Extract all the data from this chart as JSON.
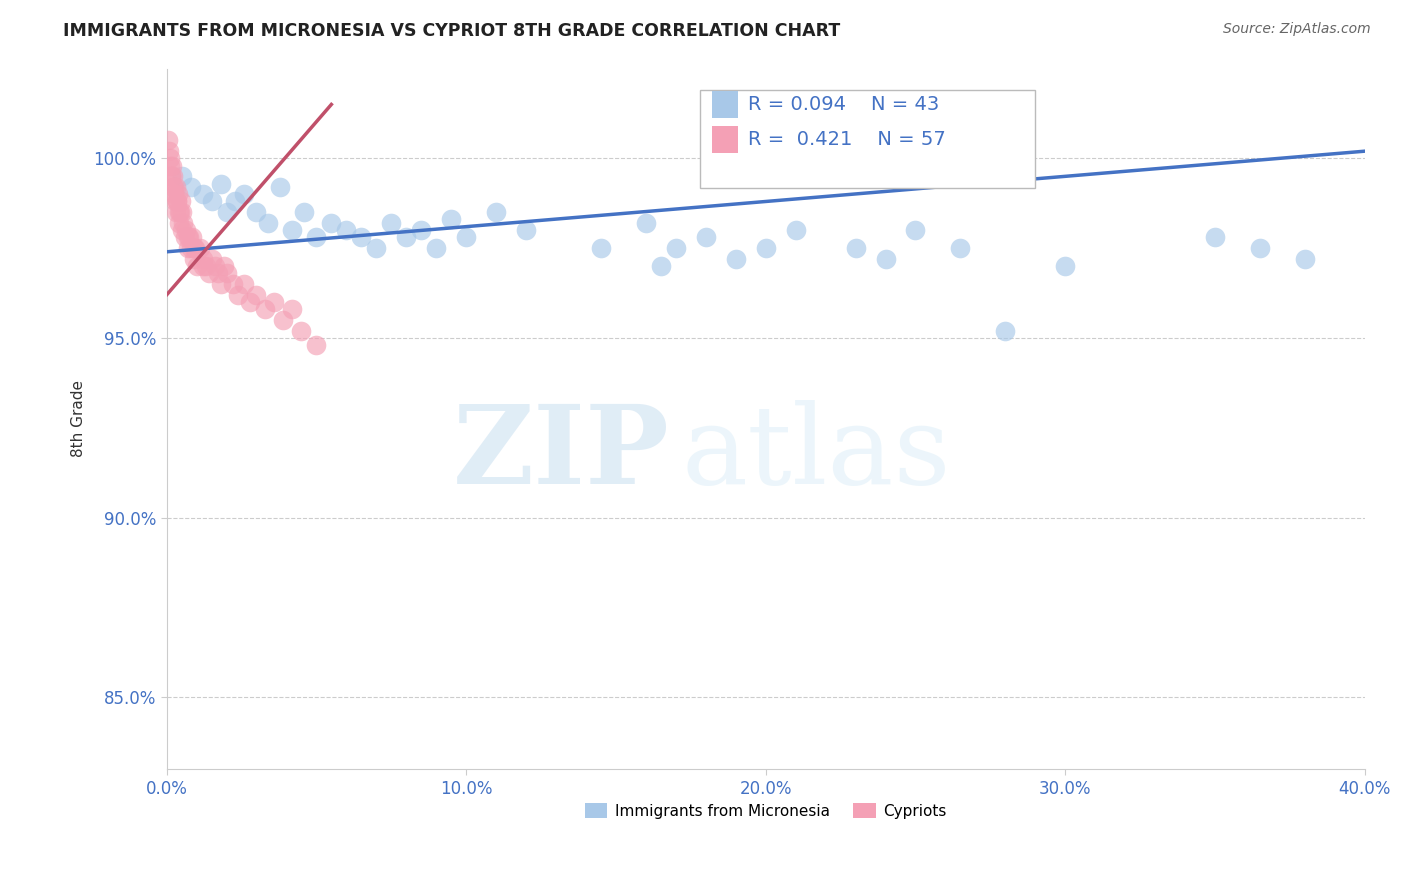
{
  "title": "IMMIGRANTS FROM MICRONESIA VS CYPRIOT 8TH GRADE CORRELATION CHART",
  "source": "Source: ZipAtlas.com",
  "ylabel": "8th Grade",
  "xlim": [
    0.0,
    40.0
  ],
  "ylim": [
    83.0,
    102.5
  ],
  "yticks": [
    85.0,
    90.0,
    95.0,
    100.0
  ],
  "xticks": [
    0.0,
    10.0,
    20.0,
    30.0,
    40.0
  ],
  "blue_r": 0.094,
  "blue_n": 43,
  "pink_r": 0.421,
  "pink_n": 57,
  "blue_color": "#a8c8e8",
  "pink_color": "#f4a0b5",
  "blue_line_color": "#4472c4",
  "pink_line_color": "#c0506a",
  "legend_text_color": "#4472c4",
  "blue_trend_x": [
    0.0,
    40.0
  ],
  "blue_trend_y": [
    97.4,
    100.2
  ],
  "pink_trend_x": [
    0.0,
    5.5
  ],
  "pink_trend_y": [
    96.2,
    101.5
  ],
  "blue_x": [
    0.5,
    0.8,
    1.2,
    1.5,
    1.8,
    2.0,
    2.3,
    2.6,
    3.0,
    3.4,
    3.8,
    4.2,
    4.6,
    5.0,
    5.5,
    6.0,
    6.5,
    7.0,
    7.5,
    8.0,
    8.5,
    9.0,
    9.5,
    10.0,
    11.0,
    12.0,
    14.5,
    16.0,
    16.5,
    17.0,
    18.0,
    19.0,
    20.0,
    21.0,
    23.0,
    24.0,
    25.0,
    26.5,
    28.0,
    30.0,
    35.0,
    36.5,
    38.0
  ],
  "blue_y": [
    99.5,
    99.2,
    99.0,
    98.8,
    99.3,
    98.5,
    98.8,
    99.0,
    98.5,
    98.2,
    99.2,
    98.0,
    98.5,
    97.8,
    98.2,
    98.0,
    97.8,
    97.5,
    98.2,
    97.8,
    98.0,
    97.5,
    98.3,
    97.8,
    98.5,
    98.0,
    97.5,
    98.2,
    97.0,
    97.5,
    97.8,
    97.2,
    97.5,
    98.0,
    97.5,
    97.2,
    98.0,
    97.5,
    95.2,
    97.0,
    97.8,
    97.5,
    97.2
  ],
  "pink_x": [
    0.05,
    0.08,
    0.1,
    0.12,
    0.15,
    0.18,
    0.2,
    0.22,
    0.25,
    0.28,
    0.3,
    0.33,
    0.35,
    0.38,
    0.4,
    0.42,
    0.45,
    0.48,
    0.5,
    0.55,
    0.6,
    0.65,
    0.7,
    0.75,
    0.8,
    0.85,
    0.9,
    0.95,
    1.0,
    1.1,
    1.2,
    1.3,
    1.4,
    1.5,
    1.6,
    1.7,
    1.8,
    1.9,
    2.0,
    2.2,
    2.4,
    2.6,
    2.8,
    3.0,
    3.3,
    3.6,
    3.9,
    4.2,
    4.5,
    5.0,
    0.15,
    0.25,
    0.35,
    0.5,
    0.7,
    0.9,
    1.2
  ],
  "pink_y": [
    100.5,
    100.2,
    99.8,
    100.0,
    99.5,
    99.8,
    99.2,
    99.5,
    99.0,
    98.8,
    99.2,
    98.5,
    98.8,
    99.0,
    98.5,
    98.2,
    98.5,
    98.8,
    98.0,
    98.2,
    97.8,
    98.0,
    97.5,
    97.8,
    97.5,
    97.8,
    97.2,
    97.5,
    97.0,
    97.5,
    97.2,
    97.0,
    96.8,
    97.2,
    97.0,
    96.8,
    96.5,
    97.0,
    96.8,
    96.5,
    96.2,
    96.5,
    96.0,
    96.2,
    95.8,
    96.0,
    95.5,
    95.8,
    95.2,
    94.8,
    99.5,
    99.2,
    98.8,
    98.5,
    97.8,
    97.5,
    97.0
  ],
  "watermark_zip": "ZIP",
  "watermark_atlas": "atlas"
}
